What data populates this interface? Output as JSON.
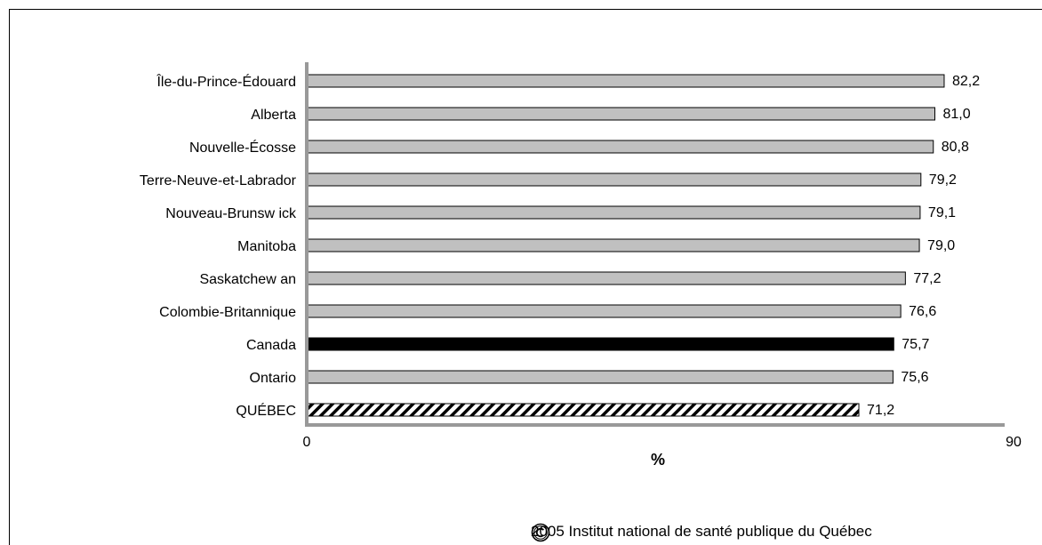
{
  "chart_data": {
    "type": "bar",
    "orientation": "horizontal",
    "categories": [
      "Île-du-Prince-Édouard",
      "Alberta",
      "Nouvelle-Écosse",
      "Terre-Neuve-et-Labrador",
      "Nouveau-Brunsw ick",
      "Manitoba",
      "Saskatchew an",
      "Colombie-Britannique",
      "Canada",
      "Ontario",
      "QUÉBEC"
    ],
    "values": [
      82.2,
      81.0,
      80.8,
      79.2,
      79.1,
      79.0,
      77.2,
      76.6,
      75.7,
      75.6,
      71.2
    ],
    "value_labels": [
      "82,2",
      "81,0",
      "80,8",
      "79,2",
      "79,1",
      "79,0",
      "77,2",
      "76,6",
      "75,7",
      "75,6",
      "71,2"
    ],
    "bar_styles": [
      "gray",
      "gray",
      "gray",
      "gray",
      "gray",
      "gray",
      "gray",
      "gray",
      "black",
      "gray",
      "hatched"
    ],
    "colors": {
      "gray": "#c0c0c0",
      "black": "#000000",
      "axis": "#999999",
      "outline": "#000000"
    },
    "xlim": [
      0,
      90
    ],
    "x_ticks": [
      "0",
      "90"
    ],
    "xlabel": "%",
    "ylabel": "",
    "title": "",
    "grid": false,
    "legend": "none"
  },
  "footer": {
    "copyright": "2005 Institut national de santé publique du Québec"
  }
}
